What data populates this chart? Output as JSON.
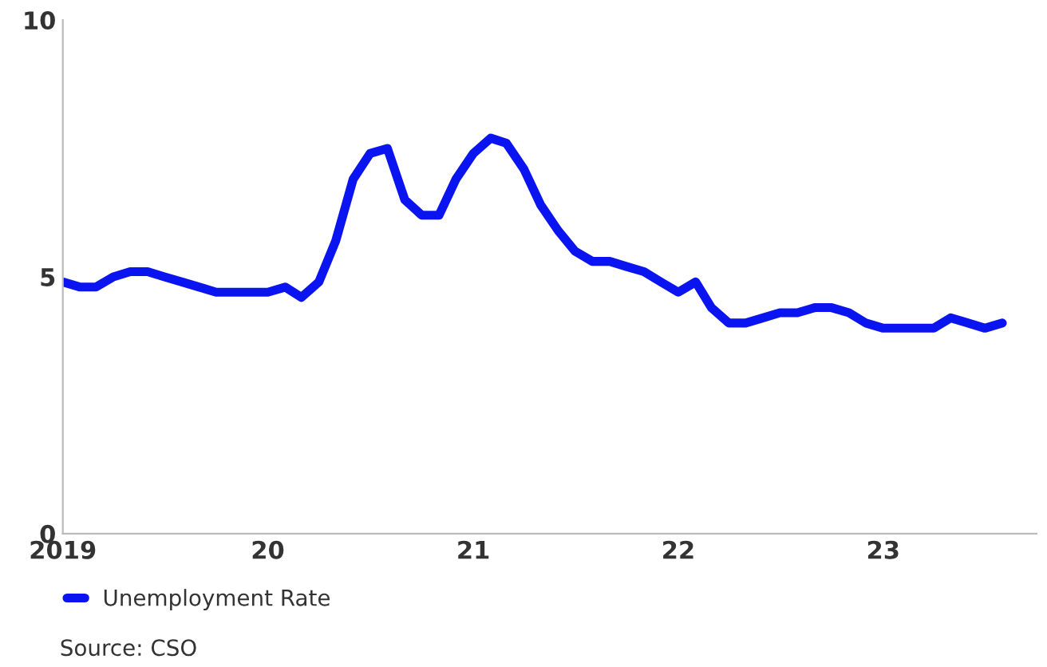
{
  "chart_data": {
    "type": "line",
    "x": [
      "2019-01",
      "2019-02",
      "2019-03",
      "2019-04",
      "2019-05",
      "2019-06",
      "2019-07",
      "2019-08",
      "2019-09",
      "2019-10",
      "2019-11",
      "2019-12",
      "2020-01",
      "2020-02",
      "2020-03",
      "2020-04",
      "2020-05",
      "2020-06",
      "2020-07",
      "2020-08",
      "2020-09",
      "2020-10",
      "2020-11",
      "2020-12",
      "2021-01",
      "2021-02",
      "2021-03",
      "2021-04",
      "2021-05",
      "2021-06",
      "2021-07",
      "2021-08",
      "2021-09",
      "2021-10",
      "2021-11",
      "2021-12",
      "2022-01",
      "2022-02",
      "2022-03",
      "2022-04",
      "2022-05",
      "2022-06",
      "2022-07",
      "2022-08",
      "2022-09",
      "2022-10",
      "2022-11",
      "2022-12",
      "2023-01",
      "2023-02",
      "2023-03",
      "2023-04",
      "2023-05",
      "2023-06",
      "2023-07",
      "2023-08"
    ],
    "series": [
      {
        "name": "Unemployment Rate",
        "color": "#0a14f0",
        "values": [
          4.9,
          4.8,
          4.8,
          5.0,
          5.1,
          5.1,
          5.0,
          4.9,
          4.8,
          4.7,
          4.7,
          4.7,
          4.7,
          4.8,
          4.6,
          4.9,
          5.7,
          6.9,
          7.4,
          7.5,
          6.5,
          6.2,
          6.2,
          6.9,
          7.4,
          7.7,
          7.6,
          7.1,
          6.4,
          5.9,
          5.5,
          5.3,
          5.3,
          5.2,
          5.1,
          4.9,
          4.7,
          4.9,
          4.4,
          4.1,
          4.1,
          4.2,
          4.3,
          4.3,
          4.4,
          4.4,
          4.3,
          4.1,
          4.0,
          4.0,
          4.0,
          4.0,
          4.2,
          4.1,
          4.0,
          4.1
        ]
      }
    ],
    "xlim": [
      "2019-01",
      "2023-10"
    ],
    "xticks": [
      {
        "value": "2019-01",
        "label": "2019"
      },
      {
        "value": "2020-01",
        "label": "20"
      },
      {
        "value": "2021-01",
        "label": "21"
      },
      {
        "value": "2022-01",
        "label": "22"
      },
      {
        "value": "2023-01",
        "label": "23"
      }
    ],
    "ylim": [
      0,
      10
    ],
    "yticks": [
      0,
      5,
      10
    ],
    "grid": false,
    "legend": "bottom left",
    "line_style": "solid",
    "marker": "none",
    "annotations": [
      "Source: CSO"
    ]
  }
}
